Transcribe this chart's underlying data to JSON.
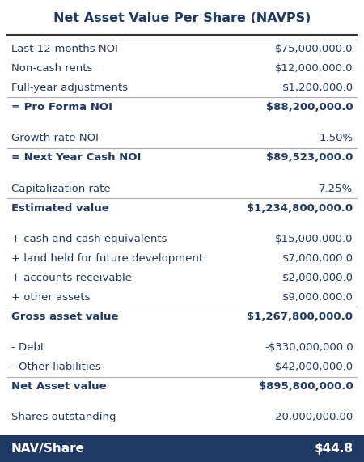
{
  "title": "Net Asset Value Per Share (NAVPS)",
  "title_color": "#1F3864",
  "header_bg": "#1F3864",
  "header_text_color": "#FFFFFF",
  "bg_color": "#FFFFFF",
  "rows": [
    {
      "label": "Last 12-months NOI",
      "value": "$75,000,000.0",
      "bold": false,
      "separator_above": true,
      "separator_below": false,
      "gap_below": false
    },
    {
      "label": "Non-cash rents",
      "value": "$12,000,000.0",
      "bold": false,
      "separator_above": false,
      "separator_below": false,
      "gap_below": false
    },
    {
      "label": "Full-year adjustments",
      "value": "$1,200,000.0",
      "bold": false,
      "separator_above": false,
      "separator_below": true,
      "gap_below": false
    },
    {
      "label": "= Pro Forma NOI",
      "value": "$88,200,000.0",
      "bold": true,
      "separator_above": false,
      "separator_below": false,
      "gap_below": true
    },
    {
      "label": "Growth rate NOI",
      "value": "1.50%",
      "bold": false,
      "separator_above": false,
      "separator_below": true,
      "gap_below": false
    },
    {
      "label": "= Next Year Cash NOI",
      "value": "$89,523,000.0",
      "bold": true,
      "separator_above": false,
      "separator_below": false,
      "gap_below": true
    },
    {
      "label": "Capitalization rate",
      "value": "7.25%",
      "bold": false,
      "separator_above": false,
      "separator_below": true,
      "gap_below": false
    },
    {
      "label": "Estimated value",
      "value": "$1,234,800,000.0",
      "bold": true,
      "separator_above": false,
      "separator_below": false,
      "gap_below": true
    },
    {
      "label": "+ cash and cash equivalents",
      "value": "$15,000,000.0",
      "bold": false,
      "separator_above": false,
      "separator_below": false,
      "gap_below": false
    },
    {
      "label": "+ land held for future development",
      "value": "$7,000,000.0",
      "bold": false,
      "separator_above": false,
      "separator_below": false,
      "gap_below": false
    },
    {
      "label": "+ accounts receivable",
      "value": "$2,000,000.0",
      "bold": false,
      "separator_above": false,
      "separator_below": false,
      "gap_below": false
    },
    {
      "label": "+ other assets",
      "value": "$9,000,000.0",
      "bold": false,
      "separator_above": false,
      "separator_below": true,
      "gap_below": false
    },
    {
      "label": "Gross asset value",
      "value": "$1,267,800,000.0",
      "bold": true,
      "separator_above": false,
      "separator_below": false,
      "gap_below": true
    },
    {
      "label": "- Debt",
      "value": "-$330,000,000.0",
      "bold": false,
      "separator_above": false,
      "separator_below": false,
      "gap_below": false
    },
    {
      "label": "- Other liabilities",
      "value": "-$42,000,000.0",
      "bold": false,
      "separator_above": false,
      "separator_below": true,
      "gap_below": false
    },
    {
      "label": "Net Asset value",
      "value": "$895,800,000.0",
      "bold": true,
      "separator_above": false,
      "separator_below": false,
      "gap_below": true
    },
    {
      "label": "Shares outstanding",
      "value": "20,000,000.00",
      "bold": false,
      "separator_above": false,
      "separator_below": false,
      "gap_below": false
    }
  ],
  "footer_label": "NAV/Share",
  "footer_value": "$44.8",
  "line_color": "#A9A9A9",
  "top_line_color": "#333333",
  "label_font_size": 9.5,
  "value_font_size": 9.5,
  "bold_color": "#1F3864",
  "normal_color": "#1F3864",
  "title_fontsize": 11.5,
  "footer_fontsize": 11
}
